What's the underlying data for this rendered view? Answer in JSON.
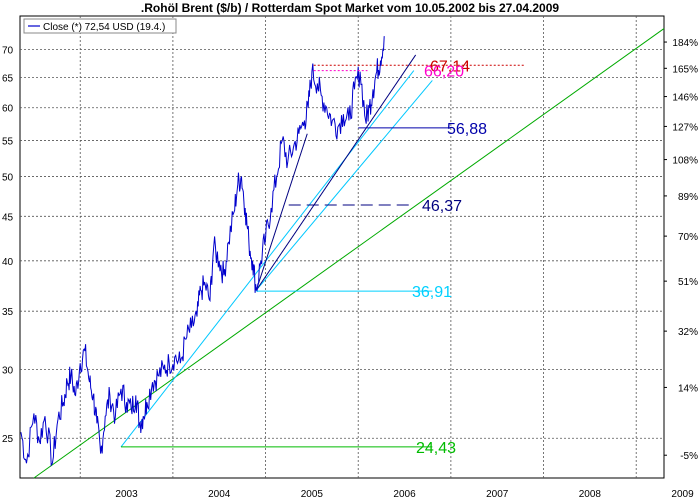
{
  "chart_data": {
    "type": "line",
    "title": ".Rohöl Brent ($/b) / Rotterdam Spot Market vom 10.05.2002 bis 27.04.2009",
    "legend": {
      "label": "Close (*) 72,54 USD (19.4.)",
      "position": "top-left",
      "color": "#0000cc"
    },
    "x_range": [
      2002.35,
      2009.3
    ],
    "y_range": [
      22.5,
      76.5
    ],
    "y_scale": "log",
    "grid": true,
    "x_ticks": [
      "2003",
      "2004",
      "2005",
      "2006",
      "2007",
      "2008",
      "2009"
    ],
    "y_ticks_left": [
      25,
      30,
      35,
      40,
      45,
      50,
      55,
      60,
      65,
      70
    ],
    "y_ticks_right": [
      {
        "label": "184%",
        "value": 71.4
      },
      {
        "label": "165%",
        "value": 66.6
      },
      {
        "label": "146%",
        "value": 61.8
      },
      {
        "label": "127%",
        "value": 57.1
      },
      {
        "label": "108%",
        "value": 52.3
      },
      {
        "label": "89%",
        "value": 47.5
      },
      {
        "label": "70%",
        "value": 42.7
      },
      {
        "label": "51%",
        "value": 37.9
      },
      {
        "label": "32%",
        "value": 33.2
      },
      {
        "label": "14%",
        "value": 28.6
      },
      {
        "label": "-5%",
        "value": 23.9
      }
    ],
    "series": [
      {
        "color": "#0000cc",
        "x": [
          2002.36,
          2002.42,
          2002.5,
          2002.56,
          2002.62,
          2002.7,
          2002.76,
          2002.82,
          2002.86,
          2002.9,
          2002.95,
          2003.0,
          2003.05,
          2003.1,
          2003.14,
          2003.18,
          2003.22,
          2003.27,
          2003.32,
          2003.38,
          2003.44,
          2003.5,
          2003.55,
          2003.6,
          2003.64,
          2003.68,
          2003.72,
          2003.78,
          2003.84,
          2003.9,
          2003.96,
          2004.02,
          2004.08,
          2004.14,
          2004.2,
          2004.26,
          2004.3,
          2004.35,
          2004.4,
          2004.44,
          2004.5,
          2004.55,
          2004.6,
          2004.66,
          2004.7,
          2004.74,
          2004.78,
          2004.82,
          2004.86,
          2004.9,
          2004.95,
          2005.0,
          2005.06,
          2005.12,
          2005.18,
          2005.24,
          2005.3,
          2005.36,
          2005.42,
          2005.46,
          2005.5,
          2005.56,
          2005.6,
          2005.66,
          2005.72,
          2005.78,
          2005.84,
          2005.9,
          2005.96,
          2006.02,
          2006.08,
          2006.12,
          2006.16,
          2006.2,
          2006.24,
          2006.28
        ],
        "y": [
          25.4,
          23.4,
          26.7,
          24.8,
          26.5,
          23.4,
          26.3,
          27.5,
          29.0,
          29.5,
          28.0,
          30.5,
          31.5,
          29.0,
          28.0,
          26.0,
          24.0,
          26.5,
          28.0,
          26.5,
          28.5,
          27.5,
          27.0,
          28.0,
          26.0,
          26.5,
          27.5,
          29.0,
          29.5,
          30.0,
          30.5,
          31.0,
          30.5,
          32.5,
          33.5,
          34.5,
          37.0,
          37.5,
          36.0,
          41.5,
          40.0,
          38.5,
          42.0,
          45.5,
          49.0,
          50.0,
          46.0,
          42.0,
          40.0,
          37.0,
          40.0,
          42.5,
          46.0,
          50.0,
          55.0,
          52.0,
          54.0,
          56.0,
          58.0,
          60.0,
          66.0,
          64.0,
          62.0,
          60.0,
          58.0,
          57.0,
          59.0,
          58.0,
          63.0,
          66.0,
          58.0,
          60.0,
          63.0,
          66.0,
          68.0,
          72.54
        ]
      }
    ],
    "trend_lines": [
      {
        "color": "#00aa00",
        "x": [
          2002.5,
          2009.3
        ],
        "y": [
          22.5,
          74.0
        ]
      },
      {
        "color": "#00c8ff",
        "x": [
          2003.44,
          2006.6
        ],
        "y": [
          24.43,
          66.2
        ]
      },
      {
        "color": "#00c8ff",
        "x": [
          2004.9,
          2006.8
        ],
        "y": [
          37.0,
          64.5
        ]
      },
      {
        "color": "#000080",
        "x": [
          2004.9,
          2006.62
        ],
        "y": [
          37.0,
          69.0
        ]
      },
      {
        "color": "#000080",
        "x": [
          2004.9,
          2005.45
        ],
        "y": [
          37.0,
          56.0
        ]
      }
    ],
    "levels": [
      {
        "label": "67,14",
        "value": 67.14,
        "color": "#cc0000",
        "x_from": 2005.52,
        "x_to": 2007.8
      },
      {
        "label": "66,20",
        "value": 66.2,
        "color": "#ff00cc",
        "x_from": 2005.52,
        "x_to": 2006.1
      },
      {
        "label": "56,88",
        "value": 56.88,
        "color": "#0000aa",
        "x_from": 2006.0,
        "x_to": 2007.0
      },
      {
        "label": "46,37",
        "value": 46.37,
        "color": "#000080",
        "x_from": 2005.25,
        "x_to": 2006.55
      },
      {
        "label": "36,91",
        "value": 36.91,
        "color": "#00d0ff",
        "x_from": 2004.9,
        "x_to": 2006.8
      },
      {
        "label": "24,43",
        "value": 24.43,
        "color": "#00bb00",
        "x_from": 2003.44,
        "x_to": 2006.8
      }
    ]
  }
}
